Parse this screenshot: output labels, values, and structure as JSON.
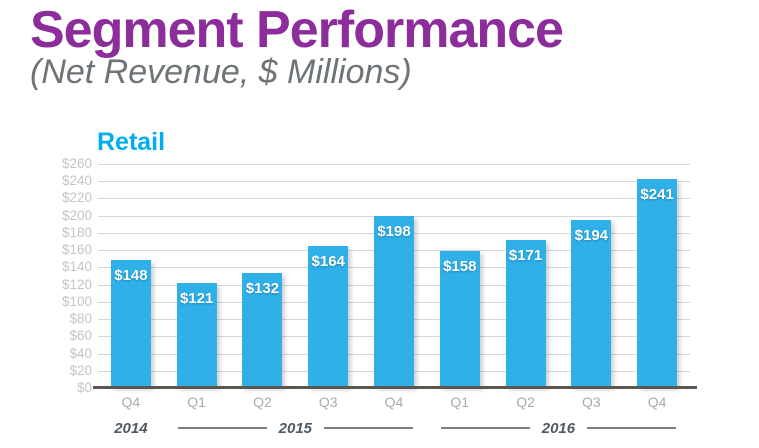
{
  "page": {
    "title": "Segment Performance",
    "subtitle": "(Net Revenue, $ Millions)"
  },
  "colors": {
    "title_purple": "#8C2D9B",
    "subtitle_gray": "#6D7377",
    "bar_blue": "#2FB0E9",
    "retail_blue": "#00AEEF",
    "ytick_gray": "#C4C4C4",
    "xtick_gray": "#ABABAB",
    "year_gray": "#4F5A63",
    "gridline_gray": "#D7D7D7",
    "baseline_gray": "#5B564F",
    "yearline_gray": "#7F7F7F"
  },
  "chart_data": {
    "type": "bar",
    "title": "Retail",
    "categories": [
      "Q4",
      "Q1",
      "Q2",
      "Q3",
      "Q4",
      "Q1",
      "Q2",
      "Q3",
      "Q4"
    ],
    "values": [
      148,
      121,
      132,
      164,
      198,
      158,
      171,
      194,
      241
    ],
    "data_labels": [
      "$148",
      "$121",
      "$132",
      "$164",
      "$198",
      "$158",
      "$171",
      "$194",
      "$241"
    ],
    "year_groups": [
      {
        "label": "2014",
        "start": 0,
        "end": 0,
        "lines": false
      },
      {
        "label": "2015",
        "start": 1,
        "end": 4,
        "lines": true
      },
      {
        "label": "2016",
        "start": 5,
        "end": 8,
        "lines": true
      }
    ],
    "y_ticks": [
      "$260",
      "$240",
      "$220",
      "$200",
      "$180",
      "$160",
      "$140",
      "$120",
      "$100",
      "$80",
      "$60",
      "$40",
      "$20",
      "$0"
    ],
    "ylim": [
      0,
      260
    ],
    "y_step": 20,
    "xlabel": "",
    "ylabel": "",
    "grid": true,
    "legend": false
  }
}
